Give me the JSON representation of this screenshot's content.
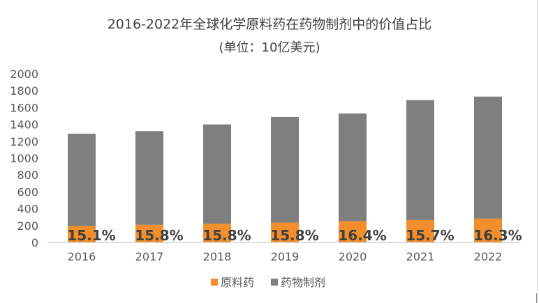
{
  "chart_data": {
    "type": "bar",
    "stacked": true,
    "title": "2016-2022年全球化学原料药在药物制剂中的价值占比",
    "subtitle": "(单位：10亿美元)",
    "categories": [
      "2016",
      "2017",
      "2018",
      "2019",
      "2020",
      "2021",
      "2022"
    ],
    "series": [
      {
        "name": "原料药",
        "color": "#F28E2B",
        "values": [
          195,
          208,
          221,
          235,
          251,
          265,
          282
        ]
      },
      {
        "name": "药物制剂",
        "color": "#7F7F7F",
        "values": [
          1095,
          1112,
          1179,
          1253,
          1279,
          1423,
          1448
        ]
      }
    ],
    "data_labels": [
      "15.1%",
      "15.8%",
      "15.8%",
      "15.8%",
      "16.4%",
      "15.7%",
      "16.3%"
    ],
    "y_ticks": [
      "0",
      "200",
      "400",
      "600",
      "800",
      "1000",
      "1200",
      "1400",
      "1600",
      "1800",
      "2000"
    ],
    "ylim": [
      0,
      2000
    ],
    "grid": false,
    "legend_position": "bottom"
  }
}
